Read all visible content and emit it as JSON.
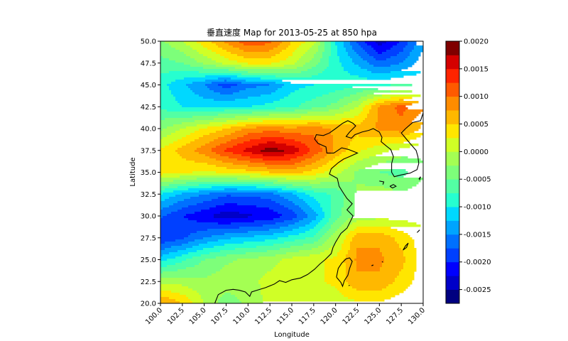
{
  "chart_data": {
    "type": "heatmap",
    "subtype": "filled-contour-map",
    "title": "垂直速度 Map for 2013-05-25 at 850 hpa",
    "xlabel": "Longitude",
    "ylabel": "Latitude",
    "xlim": [
      100,
      130
    ],
    "ylim": [
      20,
      50
    ],
    "x_ticks": [
      "100.0",
      "102.5",
      "105.0",
      "107.5",
      "110.0",
      "112.5",
      "115.0",
      "117.5",
      "120.0",
      "122.5",
      "125.0",
      "127.5",
      "130.0"
    ],
    "y_ticks": [
      "50.0",
      "47.5",
      "45.0",
      "42.5",
      "40.0",
      "37.5",
      "35.0",
      "32.5",
      "30.0",
      "27.5",
      "25.0",
      "22.5",
      "20.0"
    ],
    "colormap": "jet",
    "levels_min": -0.00275,
    "levels_max": 0.002,
    "levels_step": 0.00025,
    "colorbar_ticks": [
      "0.0020",
      "0.0015",
      "0.0010",
      "0.0005",
      "0.0000",
      "-0.0005",
      "-0.0010",
      "-0.0015",
      "-0.0020",
      "-0.0025"
    ],
    "colorbar_tick_values": [
      0.002,
      0.0015,
      0.001,
      0.0005,
      0.0,
      -0.0005,
      -0.001,
      -0.0015,
      -0.002,
      -0.0025
    ],
    "bin_colors": [
      "#000080",
      "#0000c8",
      "#0000ff",
      "#0040ff",
      "#0070ff",
      "#00a4ff",
      "#00d8ff",
      "#26ffd0",
      "#53ffa4",
      "#7dff7a",
      "#a4ff53",
      "#d0ff26",
      "#ffe600",
      "#ffb800",
      "#ff8c00",
      "#ff5a00",
      "#ff2400",
      "#d40000",
      "#7f0000"
    ],
    "grid_lons": [
      100,
      102.5,
      105,
      107.5,
      110,
      112.5,
      115,
      117.5,
      120,
      122.5,
      125,
      127.5,
      130
    ],
    "grid_lats": [
      50,
      47.5,
      45,
      42.5,
      40,
      37.5,
      35,
      32.5,
      30,
      27.5,
      25,
      22.5,
      20
    ],
    "values": [
      [
        -0.0003,
        0.0,
        0.0004,
        0.0008,
        0.0012,
        0.0011,
        0.0005,
        0.0001,
        -0.001,
        -0.0018,
        -0.0024,
        -0.002,
        -0.0013
      ],
      [
        -0.0006,
        -0.0005,
        -0.0002,
        0.0001,
        0.0003,
        0.0003,
        0.0001,
        -0.0004,
        -0.0009,
        -0.0013,
        -0.0017,
        -0.0015,
        -0.0011
      ],
      [
        -0.0009,
        -0.0012,
        -0.0015,
        -0.0019,
        -0.0016,
        -0.0015,
        -0.0011,
        -0.001,
        -0.0009,
        -0.0008,
        -0.0008,
        -0.0007,
        -0.0008
      ],
      [
        -0.0008,
        -0.001,
        -0.0011,
        -0.001,
        -0.001,
        -0.0009,
        -0.0008,
        -0.0006,
        -0.0004,
        0.0,
        0.0008,
        0.0011,
        0.0008
      ],
      [
        -0.0003,
        0.0,
        0.0003,
        0.0005,
        0.0008,
        0.0009,
        0.0008,
        0.0009,
        0.0007,
        0.0006,
        0.0008,
        0.0009,
        0.0004
      ],
      [
        0.0003,
        0.0006,
        0.0009,
        0.0013,
        0.0016,
        0.0019,
        0.0017,
        0.0012,
        0.0007,
        0.0003,
        0.0001,
        -0.0001,
        -0.0002
      ],
      [
        0.0004,
        0.0003,
        0.0002,
        0.0003,
        0.0004,
        0.0005,
        0.0006,
        0.0004,
        0.0001,
        -0.0003,
        -0.0005,
        -0.0006,
        -0.0003
      ],
      [
        -0.001,
        -0.0013,
        -0.0015,
        -0.0017,
        -0.0017,
        -0.0016,
        -0.0013,
        -0.0009,
        -0.0007,
        -0.0002,
        -0.0001,
        -0.0002,
        -0.0001
      ],
      [
        -0.0017,
        -0.002,
        -0.0022,
        -0.0024,
        -0.0023,
        -0.0022,
        -0.0019,
        -0.0014,
        -0.0006,
        -0.0002,
        -0.0001,
        -0.0001,
        -0.0001
      ],
      [
        -0.002,
        -0.0018,
        -0.0015,
        -0.0013,
        -0.0012,
        -0.0011,
        -0.0009,
        -0.0007,
        -0.0001,
        0.0007,
        0.0007,
        0.0004,
        0.0001
      ],
      [
        -0.0011,
        -0.0008,
        -0.0005,
        -0.0003,
        -0.0002,
        -0.0001,
        0.0001,
        0.0002,
        0.0003,
        0.0008,
        0.0008,
        0.0006,
        0.0001
      ],
      [
        -0.0001,
        -0.0001,
        -0.0002,
        -0.0001,
        -0.0001,
        0.0001,
        0.0002,
        0.0002,
        0.0003,
        0.0007,
        0.0007,
        0.0004,
        0.0001
      ],
      [
        0.0008,
        0.0005,
        0.0,
        -0.0004,
        -0.0002,
        0.0001,
        0.0001,
        0.0001,
        0.0001,
        0.0002,
        0.0002,
        0.0001,
        0.0001
      ]
    ],
    "coastlines": true,
    "grid": false,
    "legend": "colorbar-right"
  }
}
